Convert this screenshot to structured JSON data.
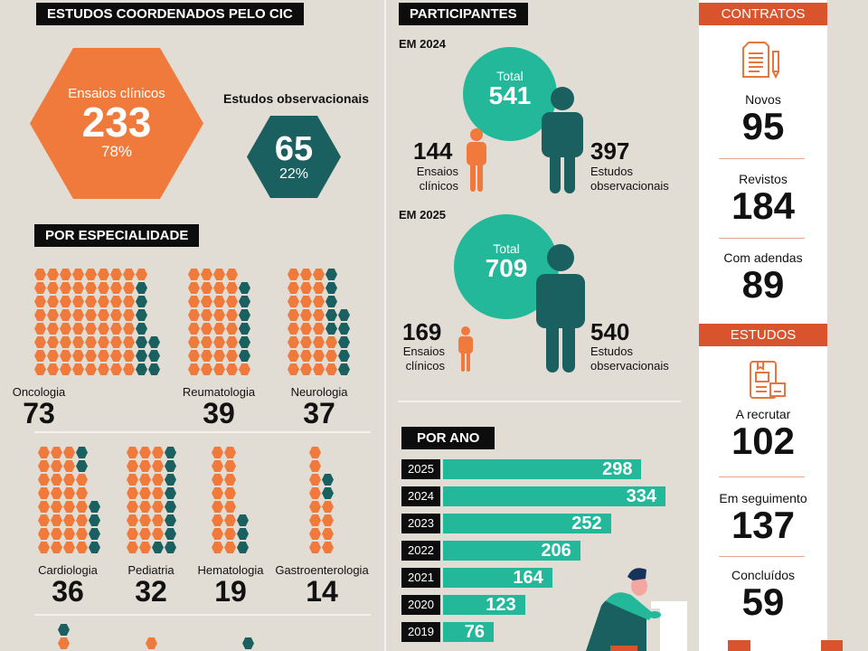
{
  "colors": {
    "background": "#e2ddd4",
    "orange": "#f07a3c",
    "teal_dark": "#1a6060",
    "mint": "#23b89a",
    "red": "#d9532c"
  },
  "estudos": {
    "title": "ESTUDOS COORDENADOS PELO CIC",
    "ensaios": {
      "label": "Ensaios clínicos",
      "value": "233",
      "pct": "78%"
    },
    "observacionais": {
      "label": "Estudos observacionais",
      "value": "65",
      "pct": "22%"
    }
  },
  "especialidade": {
    "title": "POR ESPECIALIDADE",
    "legend_note": "orange = ensaios clínicos, teal = estudos observacionais",
    "items": [
      {
        "label": "Oncologia",
        "value": "73",
        "grid": [
          "ooooooooo",
          "oooooooot",
          "oooooooot",
          "oooooooot",
          "oooooooot",
          "oooooooott",
          "oooooooott",
          "oooooooott"
        ]
      },
      {
        "label": "Reumatologia",
        "value": "39",
        "grid": [
          "oooo",
          "oooot",
          "oooot",
          "oooot",
          "oooot",
          "oooot",
          "oooot",
          "ooooo"
        ]
      },
      {
        "label": "Neurologia",
        "value": "37",
        "grid": [
          "ooot",
          "ooot",
          "ooot",
          "ooott",
          "ooott",
          "oooot",
          "oooot",
          "oooot"
        ]
      },
      {
        "label": "Cardiologia",
        "value": "36",
        "grid": [
          "ooot",
          "ooot",
          "oooo",
          "oooo",
          "oooot",
          "oooot",
          "oooot",
          "oooot"
        ]
      },
      {
        "label": "Pediatria",
        "value": "32",
        "grid": [
          "ooot",
          "ooot",
          "ooot",
          "ooot",
          "ooot",
          "ooot",
          "ooot",
          "oott"
        ]
      },
      {
        "label": "Hematologia",
        "value": "19",
        "grid": [
          "oo",
          "oo",
          "oo",
          "oo",
          "oo",
          "oot",
          "oot",
          "oot"
        ]
      },
      {
        "label": "Gastroenterologia",
        "value": "14",
        "grid": [
          "o",
          "o",
          "ot",
          "ot",
          "oo",
          "oo",
          "oo",
          "oo"
        ]
      }
    ]
  },
  "participantes": {
    "title": "PARTICIPANTES",
    "y2024": {
      "label": "EM 2024",
      "total_label": "Total",
      "total": "541",
      "ensaios": "144",
      "ensaios_label": "Ensaios clínicos",
      "obs": "397",
      "obs_label": "Estudos observacionais"
    },
    "y2025": {
      "label": "EM 2025",
      "total_label": "Total",
      "total": "709",
      "ensaios": "169",
      "ensaios_label": "Ensaios clínicos",
      "obs": "540",
      "obs_label": "Estudos observacionais"
    }
  },
  "chart_data": {
    "type": "bar",
    "title": "POR ANO",
    "orientation": "horizontal",
    "categories": [
      "2025",
      "2024",
      "2023",
      "2022",
      "2021",
      "2020",
      "2019"
    ],
    "values": [
      298,
      334,
      252,
      206,
      164,
      123,
      76
    ],
    "xlim": [
      0,
      334
    ],
    "grid": false
  },
  "contratos": {
    "title": "CONTRATOS",
    "icon": "contract-pencil-icon",
    "items": [
      {
        "label": "Novos",
        "value": "95"
      },
      {
        "label": "Revistos",
        "value": "184"
      },
      {
        "label": "Com adendas",
        "value": "89"
      }
    ]
  },
  "estudos_status": {
    "title": "ESTUDOS",
    "icon": "study-book-icon",
    "items": [
      {
        "label": "A recrutar",
        "value": "102"
      },
      {
        "label": "Em seguimento",
        "value": "137"
      },
      {
        "label": "Concluídos",
        "value": "59"
      }
    ]
  }
}
